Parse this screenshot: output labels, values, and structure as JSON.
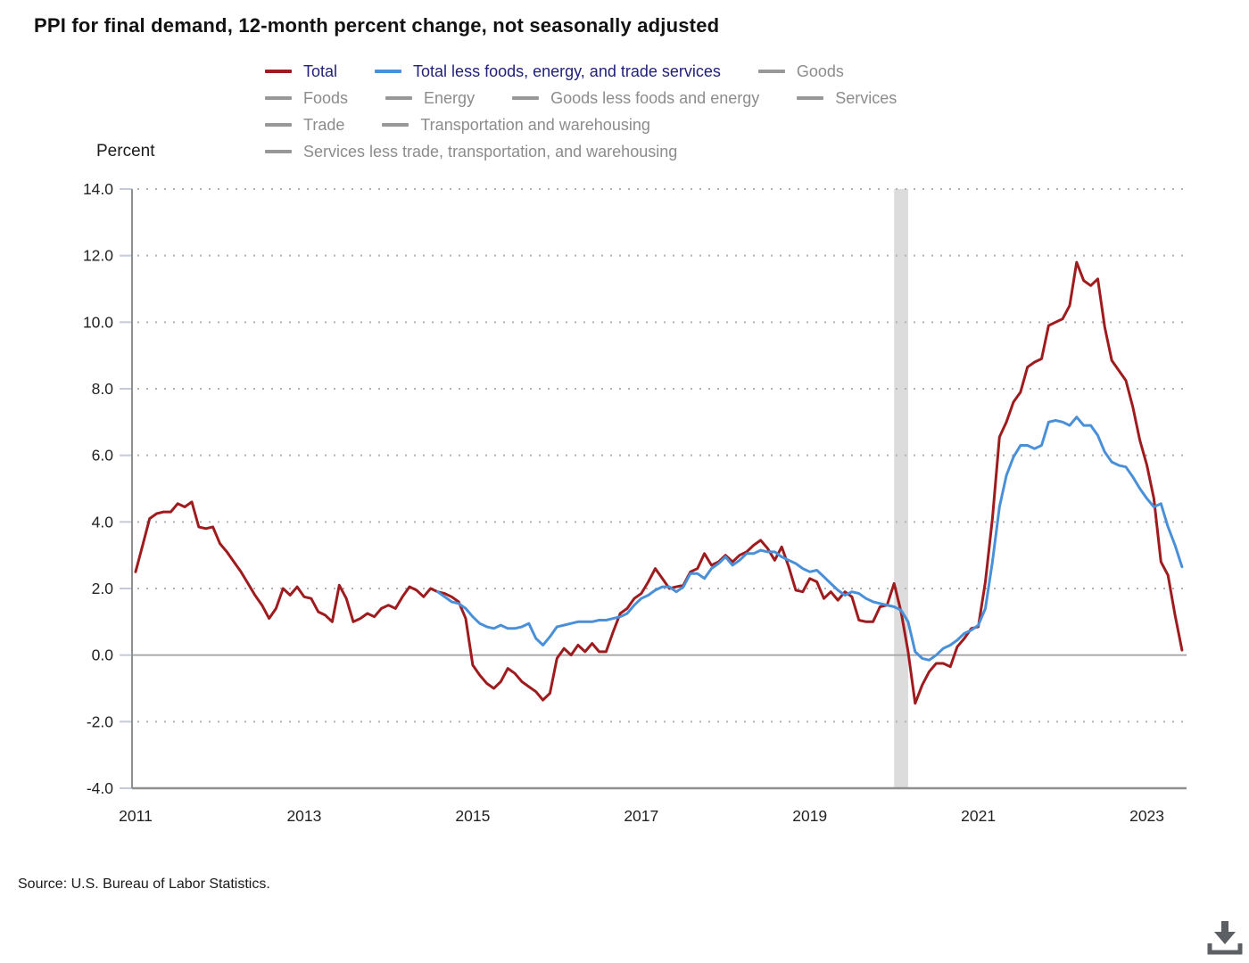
{
  "title": "PPI for final demand, 12-month percent change, not seasonally adjusted",
  "y_axis_label": "Percent",
  "source": "Source: U.S. Bureau of Labor Statistics.",
  "icons": {
    "download": "download-icon"
  },
  "colors": {
    "total_line": "#9e1b1e",
    "core_line": "#4a90d9",
    "active_legend_text": "#21217a",
    "inactive_legend_text": "#8c8c8c",
    "inactive_swatch": "#989898",
    "grid_dotted": "#b3b3b3",
    "zero_line": "#a6a6a6",
    "axis_line": "#8f8f8f",
    "tick_mark": "#c3cbd7",
    "recession_band": "#dcdcdc",
    "tick_text": "#222222"
  },
  "legend": {
    "rows": [
      [
        {
          "label": "Total",
          "active": true,
          "color": "#9e1b1e"
        },
        {
          "label": "Total less foods, energy, and trade services",
          "active": true,
          "color": "#4a90d9"
        },
        {
          "label": "Goods",
          "active": false
        }
      ],
      [
        {
          "label": "Foods",
          "active": false
        },
        {
          "label": "Energy",
          "active": false
        },
        {
          "label": "Goods less foods and energy",
          "active": false
        },
        {
          "label": "Services",
          "active": false
        }
      ],
      [
        {
          "label": "Trade",
          "active": false
        },
        {
          "label": "Transportation and warehousing",
          "active": false
        }
      ],
      [
        {
          "label": "Services less trade, transportation, and warehousing",
          "active": false
        }
      ]
    ]
  },
  "axes": {
    "y_ticks": [
      {
        "value": 14,
        "label": "14.0"
      },
      {
        "value": 12,
        "label": "12.0"
      },
      {
        "value": 10,
        "label": "10.0"
      },
      {
        "value": 8,
        "label": "8.0"
      },
      {
        "value": 6,
        "label": "6.0"
      },
      {
        "value": 4,
        "label": "4.0"
      },
      {
        "value": 2,
        "label": "2.0"
      },
      {
        "value": 0,
        "label": "0.0"
      },
      {
        "value": -2,
        "label": "-2.0"
      },
      {
        "value": -4,
        "label": "-4.0"
      }
    ],
    "x_ticks": [
      {
        "year": 2011,
        "label": "2011"
      },
      {
        "year": 2013,
        "label": "2013"
      },
      {
        "year": 2015,
        "label": "2015"
      },
      {
        "year": 2017,
        "label": "2017"
      },
      {
        "year": 2019,
        "label": "2019"
      },
      {
        "year": 2021,
        "label": "2021"
      },
      {
        "year": 2023,
        "label": "2023"
      }
    ]
  },
  "chart_data": {
    "type": "line",
    "title": "PPI for final demand, 12-month percent change, not seasonally adjusted",
    "ylabel": "Percent",
    "ylim": [
      -4.0,
      14.0
    ],
    "y_tick_step": 2.0,
    "x_range": [
      "2011-01",
      "2023-06"
    ],
    "frequency": "monthly",
    "grid": "dotted horizontal gridlines, solid line at zero",
    "legend_position": "top",
    "recession_band": {
      "from": "2020-02",
      "to": "2020-04"
    },
    "series": [
      {
        "name": "Total",
        "color": "#9e1b1e",
        "start": "2011-01",
        "values": [
          2.5,
          3.3,
          4.1,
          4.25,
          4.3,
          4.3,
          4.55,
          4.45,
          4.6,
          3.85,
          3.8,
          3.85,
          3.35,
          3.1,
          2.8,
          2.5,
          2.15,
          1.8,
          1.5,
          1.1,
          1.4,
          2.0,
          1.8,
          2.05,
          1.75,
          1.7,
          1.3,
          1.2,
          1.0,
          2.1,
          1.7,
          1.0,
          1.1,
          1.25,
          1.15,
          1.4,
          1.5,
          1.4,
          1.75,
          2.05,
          1.95,
          1.75,
          2.0,
          1.9,
          1.85,
          1.75,
          1.6,
          1.1,
          -0.3,
          -0.6,
          -0.85,
          -1.0,
          -0.8,
          -0.4,
          -0.55,
          -0.8,
          -0.95,
          -1.1,
          -1.35,
          -1.15,
          -0.1,
          0.2,
          0.0,
          0.3,
          0.1,
          0.35,
          0.1,
          0.1,
          0.7,
          1.25,
          1.4,
          1.7,
          1.85,
          2.2,
          2.6,
          2.3,
          2.0,
          2.05,
          2.1,
          2.5,
          2.6,
          3.05,
          2.7,
          2.8,
          3.0,
          2.8,
          3.0,
          3.1,
          3.3,
          3.45,
          3.2,
          2.85,
          3.25,
          2.65,
          1.95,
          1.9,
          2.3,
          2.2,
          1.7,
          1.9,
          1.65,
          1.9,
          1.75,
          1.05,
          1.0,
          1.0,
          1.45,
          1.5,
          2.15,
          1.3,
          0.1,
          -1.45,
          -0.9,
          -0.5,
          -0.25,
          -0.25,
          -0.35,
          0.25,
          0.5,
          0.8,
          0.85,
          2.2,
          4.1,
          6.55,
          7.0,
          7.6,
          7.9,
          8.65,
          8.8,
          8.9,
          9.9,
          10.0,
          10.1,
          10.5,
          11.8,
          11.25,
          11.1,
          11.3,
          9.85,
          8.85,
          8.55,
          8.25,
          7.45,
          6.45,
          5.7,
          4.7,
          2.8,
          2.4,
          1.2,
          0.15
        ]
      },
      {
        "name": "Total less foods, energy, and trade services",
        "color": "#4a90d9",
        "start": "2014-08",
        "values": [
          1.9,
          1.75,
          1.6,
          1.55,
          1.4,
          1.15,
          0.95,
          0.85,
          0.8,
          0.9,
          0.8,
          0.8,
          0.85,
          0.95,
          0.5,
          0.3,
          0.55,
          0.85,
          0.9,
          0.95,
          1.0,
          1.0,
          1.0,
          1.05,
          1.05,
          1.1,
          1.15,
          1.25,
          1.5,
          1.7,
          1.8,
          1.95,
          2.05,
          2.05,
          1.9,
          2.05,
          2.45,
          2.45,
          2.3,
          2.6,
          2.75,
          2.95,
          2.7,
          2.85,
          3.05,
          3.05,
          3.15,
          3.1,
          3.1,
          2.95,
          2.85,
          2.75,
          2.6,
          2.5,
          2.55,
          2.35,
          2.15,
          1.95,
          1.8,
          1.9,
          1.85,
          1.7,
          1.6,
          1.55,
          1.5,
          1.45,
          1.35,
          1.0,
          0.1,
          -0.1,
          -0.15,
          0.0,
          0.2,
          0.3,
          0.45,
          0.65,
          0.75,
          0.9,
          1.4,
          2.8,
          4.45,
          5.4,
          5.95,
          6.3,
          6.3,
          6.2,
          6.3,
          7.0,
          7.05,
          7.0,
          6.9,
          7.15,
          6.9,
          6.9,
          6.6,
          6.1,
          5.8,
          5.7,
          5.65,
          5.35,
          5.0,
          4.7,
          4.45,
          4.55,
          3.85,
          3.3,
          2.65
        ]
      }
    ],
    "inactive_series": [
      "Goods",
      "Foods",
      "Energy",
      "Goods less foods and energy",
      "Services",
      "Trade",
      "Transportation and warehousing",
      "Services less trade, transportation, and warehousing"
    ]
  }
}
